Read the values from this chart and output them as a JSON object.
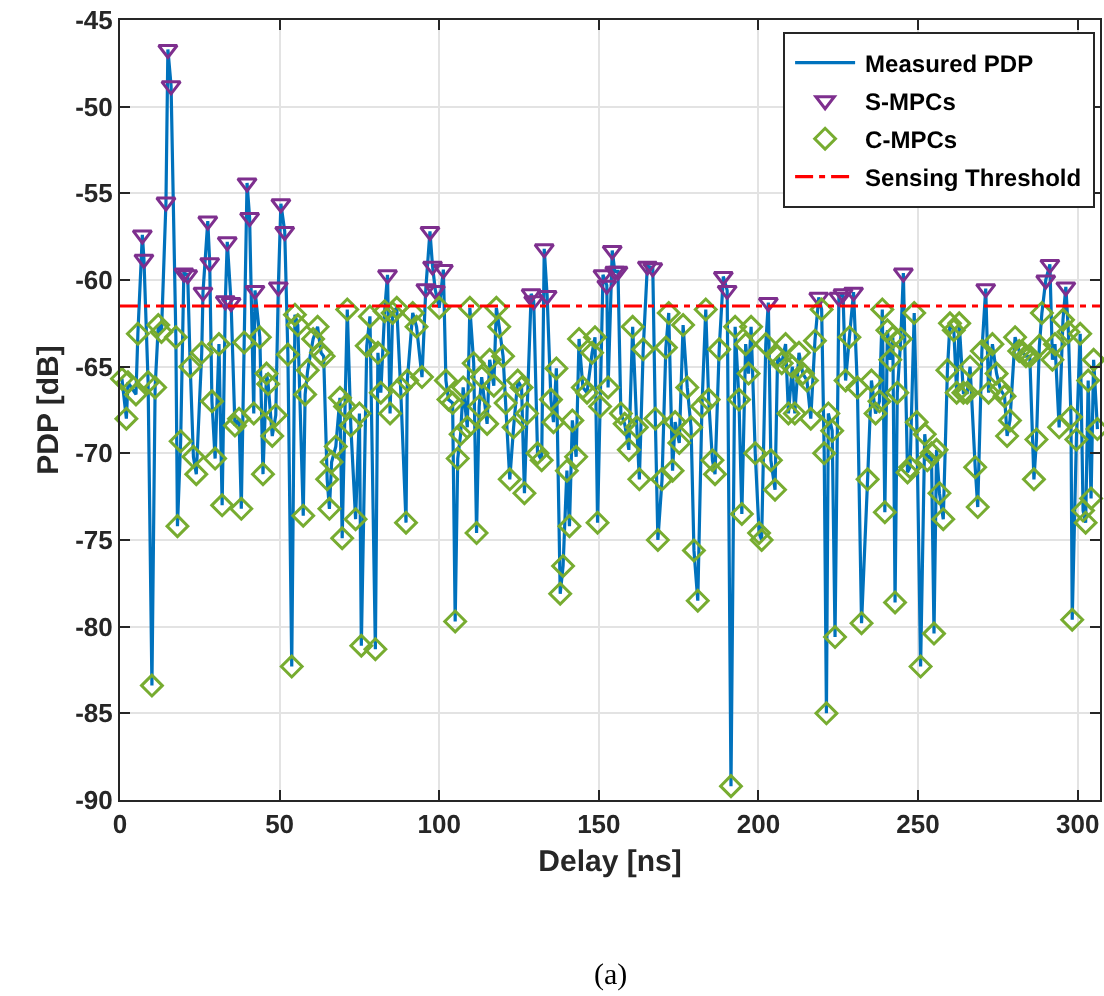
{
  "chart_data": {
    "type": "line",
    "xlabel": "Delay [ns]",
    "ylabel": "PDP [dB]",
    "xlim": [
      0,
      307
    ],
    "ylim": [
      -90,
      -45
    ],
    "xticks": [
      0,
      50,
      100,
      150,
      200,
      250,
      300
    ],
    "yticks": [
      -90,
      -85,
      -80,
      -75,
      -70,
      -65,
      -60,
      -55,
      -50,
      -45
    ],
    "grid": true,
    "legend": "top right",
    "annotations": [
      "(a)"
    ],
    "ref_lines": [
      {
        "axis": "y",
        "value": -61.5,
        "label": "Sensing Threshold",
        "color": "#ff0000",
        "line_style": "dashdot"
      }
    ],
    "series": [
      {
        "name": "Measured PDP",
        "color": "#0072bd",
        "marker": "none",
        "line_style": "solid",
        "x": [
          0.6,
          2,
          2.5,
          5,
          5.6,
          7,
          7.5,
          8.8,
          10,
          11,
          12,
          13,
          14.4,
          15,
          16,
          17.5,
          18,
          19,
          20,
          21.2,
          22,
          23,
          23.9,
          25.6,
          26,
          27.5,
          28.1,
          28.8,
          29.8,
          31,
          32,
          33,
          33.6,
          34.8,
          36,
          37.3,
          38,
          38.9,
          39.8,
          40.6,
          41.9,
          42.3,
          43.8,
          44.8,
          45.9,
          46.4,
          47.7,
          48.8,
          49.6,
          50.4,
          51.6,
          52.6,
          53.8,
          54.8,
          55.7,
          57.4,
          58,
          58.8,
          60.5,
          61.9,
          63,
          63.8,
          64.9,
          65.6,
          66.3,
          67.6,
          68.9,
          69.6,
          70.5,
          71.2,
          72.3,
          73.8,
          75,
          75.6,
          77.3,
          78.3,
          80,
          80.8,
          81.7,
          82.9,
          83.8,
          84.6,
          85.4,
          86.7,
          87.9,
          89.6,
          90,
          91.7,
          92.9,
          94.6,
          95.8,
          97.1,
          97.9,
          98.8,
          100,
          101.3,
          102.1,
          102.9,
          104.2,
          105,
          105.8,
          106.7,
          107.5,
          108.8,
          109.6,
          110.8,
          111.7,
          112.5,
          113.3,
          115,
          115.8,
          117.1,
          117.9,
          118.8,
          120,
          120.8,
          122.1,
          123.3,
          124.6,
          125.8,
          126.7,
          127.5,
          128.8,
          129.6,
          130.8,
          132.1,
          132.9,
          133.8,
          135,
          135.8,
          136.7,
          137.9,
          138.8,
          140,
          140.8,
          141.7,
          142.9,
          143.8,
          145,
          146.3,
          147.9,
          148.8,
          149.6,
          150.4,
          151.3,
          152.5,
          152.9,
          154.2,
          155,
          156,
          156.9,
          158.1,
          159.4,
          160.6,
          161.9,
          162.7,
          163.9,
          165.2,
          166.9,
          167.7,
          168.5,
          169.8,
          171,
          171.9,
          173.1,
          173.9,
          175.2,
          176.4,
          177.7,
          178.9,
          179.8,
          181,
          182.3,
          183.5,
          184.4,
          185.6,
          186.4,
          187.7,
          189,
          190.2,
          191.4,
          192.7,
          193.9,
          194.8,
          196,
          196.9,
          197.7,
          199,
          200.2,
          201,
          202.3,
          203.1,
          203.9,
          205.2,
          206,
          207.3,
          208.5,
          209.4,
          210.6,
          211.4,
          212.7,
          213.9,
          215.2,
          216.4,
          217.7,
          218.9,
          219.8,
          220.6,
          221.3,
          221.9,
          223.1,
          224,
          225.2,
          226.5,
          227.3,
          228.5,
          229.8,
          231,
          232.3,
          234.2,
          235.4,
          236.7,
          237.9,
          238.8,
          239.6,
          240.4,
          241.3,
          242.1,
          242.8,
          243.5,
          244.6,
          245.4,
          246.7,
          247.5,
          248.8,
          249.6,
          250.8,
          252.1,
          252.9,
          254.2,
          255,
          255.8,
          256.7,
          257.9,
          259.2,
          260,
          261.2,
          262.1,
          262.9,
          264.2,
          265.4,
          266.3,
          267.9,
          268.7,
          270,
          271.2,
          272.1,
          273.3,
          274.6,
          275.8,
          277.1,
          277.9,
          278.8,
          280.4,
          281.7,
          282.9,
          283.8,
          285,
          286.3,
          287.1,
          288,
          288.8,
          290,
          291.3,
          292.1,
          292.9,
          294.2,
          295.4,
          296.3,
          297.1,
          297.9,
          298.3,
          299.6,
          300.8,
          301.7,
          302.5,
          303.3,
          304.2,
          305,
          306.2
        ],
        "values": [
          -65.7,
          -68,
          -65.9,
          -66.6,
          -63.1,
          -57.4,
          -58.8,
          -65.9,
          -83.4,
          -66.2,
          -62.6,
          -63,
          -55.5,
          -46.7,
          -48.8,
          -63.3,
          -74.2,
          -69.3,
          -59.6,
          -59.7,
          -65,
          -70.2,
          -71.2,
          -64.2,
          -60.7,
          -56.6,
          -59,
          -67,
          -70.3,
          -63.7,
          -73,
          -61.2,
          -57.8,
          -61.3,
          -68.4,
          -68,
          -73.2,
          -63.6,
          -54.4,
          -56.4,
          -67.7,
          -60.6,
          -63.3,
          -71.2,
          -65.4,
          -66,
          -69,
          -67.8,
          -60.4,
          -55.6,
          -57.2,
          -64.3,
          -82.3,
          -62,
          -62.6,
          -73.6,
          -66.6,
          -65.2,
          -63.4,
          -62.7,
          -64.2,
          -64.4,
          -71.5,
          -73.2,
          -70.5,
          -69.6,
          -66.8,
          -74.9,
          -67.3,
          -61.7,
          -68.4,
          -73.8,
          -67.7,
          -81.1,
          -63.8,
          -62.1,
          -81.3,
          -64.2,
          -66.5,
          -61.8,
          -59.7,
          -67.7,
          -61.9,
          -61.6,
          -66.2,
          -74,
          -65.8,
          -61.9,
          -62.7,
          -65.6,
          -60.5,
          -57.2,
          -59.2,
          -60.6,
          -61.6,
          -59.4,
          -65.8,
          -66.9,
          -67.1,
          -79.7,
          -70.3,
          -68.9,
          -66.2,
          -68.5,
          -61.6,
          -64.8,
          -74.6,
          -67.3,
          -65.6,
          -68.3,
          -64.6,
          -66.1,
          -61.6,
          -62.7,
          -64.4,
          -67.1,
          -71.5,
          -68.5,
          -65.8,
          -66.2,
          -72.3,
          -67.7,
          -60.8,
          -61.2,
          -70,
          -70.4,
          -58.2,
          -60.9,
          -66.9,
          -68.2,
          -65.1,
          -78.1,
          -76.5,
          -71,
          -74.2,
          -68.1,
          -70.2,
          -63.4,
          -66.2,
          -66.5,
          -64.2,
          -63.3,
          -74,
          -67.3,
          -59.7,
          -60.3,
          -66.2,
          -58.3,
          -59.5,
          -59.5,
          -67.7,
          -68.3,
          -69.8,
          -62.7,
          -68.5,
          -71.5,
          -64,
          -59.2,
          -59.3,
          -68,
          -75,
          -71.5,
          -63.9,
          -61.9,
          -71,
          -68.2,
          -69.4,
          -62.6,
          -66.2,
          -68.5,
          -75.6,
          -78.5,
          -67.3,
          -61.7,
          -66.9,
          -70.4,
          -71.2,
          -64,
          -59.8,
          -60.6,
          -89.2,
          -62.7,
          -66.9,
          -73.5,
          -63.7,
          -65.4,
          -62.7,
          -70,
          -74.6,
          -75,
          -63.7,
          -61.3,
          -70.4,
          -72.1,
          -64.4,
          -64.8,
          -63.7,
          -67.7,
          -65,
          -67.7,
          -64.2,
          -65.4,
          -65.8,
          -68,
          -63.5,
          -61,
          -61.7,
          -70,
          -85,
          -67.7,
          -68.7,
          -80.6,
          -61,
          -60.8,
          -65.8,
          -63.3,
          -60.7,
          -66.2,
          -79.8,
          -71.5,
          -65.8,
          -67.7,
          -67,
          -61.7,
          -73.4,
          -62.9,
          -64.6,
          -63.3,
          -78.6,
          -66.5,
          -63.4,
          -59.6,
          -71.1,
          -70.8,
          -61.9,
          -68.2,
          -82.3,
          -68.9,
          -70.4,
          -70,
          -80.4,
          -69.8,
          -72.3,
          -73.8,
          -65.2,
          -62.5,
          -62.9,
          -66.5,
          -62.5,
          -66.5,
          -66.5,
          -65,
          -70.8,
          -73.1,
          -64.1,
          -60.5,
          -66.5,
          -63.7,
          -65.4,
          -66.3,
          -66.7,
          -69,
          -68.1,
          -63.3,
          -64.1,
          -64.2,
          -64.4,
          -64.4,
          -71.5,
          -69.2,
          -63.8,
          -61.9,
          -60,
          -59.1,
          -64.6,
          -63.7,
          -68.5,
          -62.3,
          -60.4,
          -63,
          -67.9,
          -79.6,
          -69.2,
          -63.1,
          -73.3,
          -74,
          -65.8,
          -72.6,
          -64.6,
          -68.6
        ]
      },
      {
        "name": "S-MPCs",
        "type": "scatter",
        "color": "#7e2f8e",
        "marker": "triangle",
        "x": [
          7,
          7.5,
          14.4,
          15,
          16,
          20,
          21.2,
          26,
          27.5,
          28.1,
          33,
          33.6,
          34.8,
          39.8,
          40.6,
          42.3,
          49.6,
          50.4,
          51.6,
          83.8,
          95.8,
          97.1,
          97.9,
          98.8,
          101.3,
          128.8,
          129.6,
          132.9,
          133.8,
          151.3,
          152.5,
          154.2,
          155,
          156,
          165.2,
          166.9,
          189,
          190.2,
          203.1,
          218.9,
          225.2,
          226.5,
          229.8,
          245.4,
          271.2,
          290,
          291.3,
          296.3
        ],
        "values": [
          -57.4,
          -58.8,
          -55.5,
          -46.7,
          -48.8,
          -59.6,
          -59.7,
          -60.7,
          -56.6,
          -59,
          -61.2,
          -57.8,
          -61.3,
          -54.4,
          -56.4,
          -60.6,
          -60.4,
          -55.6,
          -57.2,
          -59.7,
          -60.5,
          -57.2,
          -59.2,
          -60.6,
          -59.4,
          -60.8,
          -61.2,
          -58.2,
          -60.9,
          -59.7,
          -60.3,
          -58.3,
          -59.5,
          -59.5,
          -59.2,
          -59.3,
          -59.8,
          -60.6,
          -61.3,
          -61,
          -61,
          -60.8,
          -60.7,
          -59.6,
          -60.5,
          -60,
          -59.1,
          -60.4
        ]
      },
      {
        "name": "C-MPCs",
        "type": "scatter",
        "color": "#77ac30",
        "marker": "diamond",
        "x": [
          0.6,
          2,
          2.5,
          5,
          5.6,
          8.8,
          10,
          11,
          12,
          13,
          17.5,
          18,
          19,
          22,
          23,
          23.9,
          25.6,
          28.8,
          29.8,
          31,
          32,
          36,
          37.3,
          38,
          38.9,
          41.9,
          43.8,
          44.8,
          45.9,
          46.4,
          47.7,
          48.8,
          52.6,
          53.8,
          54.8,
          55.7,
          57.4,
          58,
          58.8,
          60.5,
          61.9,
          63,
          63.8,
          64.9,
          65.6,
          66.3,
          67.6,
          68.9,
          69.6,
          70.5,
          71.2,
          72.3,
          73.8,
          75,
          75.6,
          77.3,
          78.3,
          80,
          80.8,
          81.7,
          82.9,
          84.6,
          85.4,
          86.7,
          87.9,
          89.6,
          90,
          91.7,
          92.9,
          94.6,
          100,
          102.1,
          102.9,
          104.2,
          105,
          105.8,
          106.7,
          107.5,
          108.8,
          109.6,
          110.8,
          111.7,
          112.5,
          113.3,
          115,
          115.8,
          117.1,
          117.9,
          118.8,
          120,
          120.8,
          122.1,
          123.3,
          124.6,
          125.8,
          126.7,
          127.5,
          130.8,
          132.1,
          135,
          135.8,
          136.7,
          137.9,
          138.8,
          140,
          140.8,
          141.7,
          142.9,
          143.8,
          145,
          146.3,
          147.9,
          148.8,
          149.6,
          150.4,
          152.9,
          156.9,
          158.1,
          159.4,
          160.6,
          161.9,
          162.7,
          163.9,
          167.7,
          168.5,
          169.8,
          171,
          171.9,
          173.1,
          173.9,
          175.2,
          176.4,
          177.7,
          178.9,
          179.8,
          181,
          182.3,
          183.5,
          184.4,
          185.6,
          186.4,
          187.7,
          191.4,
          192.7,
          193.9,
          194.8,
          196,
          196.9,
          197.7,
          199,
          200.2,
          201,
          202.3,
          203.9,
          205.2,
          206,
          207.3,
          208.5,
          209.4,
          210.6,
          211.4,
          212.7,
          213.9,
          215.2,
          216.4,
          217.7,
          219.8,
          220.6,
          221.3,
          221.9,
          223.1,
          224,
          227.3,
          228.5,
          231,
          232.3,
          234.2,
          235.4,
          236.7,
          237.9,
          238.8,
          239.6,
          240.4,
          241.3,
          242.1,
          242.8,
          243.5,
          244.6,
          246.7,
          247.5,
          248.8,
          249.6,
          250.8,
          252.1,
          252.9,
          254.2,
          255,
          255.8,
          256.7,
          257.9,
          259.2,
          260,
          261.2,
          262.1,
          262.9,
          264.2,
          265.4,
          266.3,
          267.9,
          268.7,
          270,
          272.1,
          273.3,
          274.6,
          275.8,
          277.1,
          277.9,
          278.8,
          280.4,
          281.7,
          282.9,
          283.8,
          285,
          286.3,
          287.1,
          288,
          288.8,
          292.1,
          292.9,
          294.2,
          295.4,
          297.1,
          297.9,
          298.3,
          299.6,
          300.8,
          301.7,
          302.5,
          303.3,
          304.2,
          305,
          306.2
        ],
        "values": [
          -65.7,
          -68,
          -65.9,
          -66.6,
          -63.1,
          -65.9,
          -83.4,
          -66.2,
          -62.6,
          -63,
          -63.3,
          -74.2,
          -69.3,
          -65,
          -70.2,
          -71.2,
          -64.2,
          -67,
          -70.3,
          -63.7,
          -73,
          -68.4,
          -68,
          -73.2,
          -63.6,
          -67.7,
          -63.3,
          -71.2,
          -65.4,
          -66,
          -69,
          -67.8,
          -64.3,
          -82.3,
          -62,
          -62.6,
          -73.6,
          -66.6,
          -65.2,
          -63.4,
          -62.7,
          -64.2,
          -64.4,
          -71.5,
          -73.2,
          -70.5,
          -69.6,
          -66.8,
          -74.9,
          -67.3,
          -61.7,
          -68.4,
          -73.8,
          -67.7,
          -81.1,
          -63.8,
          -62.1,
          -81.3,
          -64.2,
          -66.5,
          -61.8,
          -67.7,
          -61.9,
          -61.6,
          -66.2,
          -74,
          -65.8,
          -61.9,
          -62.7,
          -65.6,
          -61.6,
          -65.8,
          -66.9,
          -67.1,
          -79.7,
          -70.3,
          -68.9,
          -66.2,
          -68.5,
          -61.6,
          -64.8,
          -74.6,
          -67.3,
          -65.6,
          -68.3,
          -64.6,
          -66.1,
          -61.6,
          -62.7,
          -64.4,
          -67.1,
          -71.5,
          -68.5,
          -65.8,
          -66.2,
          -72.3,
          -67.7,
          -70,
          -70.4,
          -66.9,
          -68.2,
          -65.1,
          -78.1,
          -76.5,
          -71,
          -74.2,
          -68.1,
          -70.2,
          -63.4,
          -66.2,
          -66.5,
          -64.2,
          -63.3,
          -74,
          -67.3,
          -66.2,
          -67.7,
          -68.3,
          -69.8,
          -62.7,
          -68.5,
          -71.5,
          -64,
          -68,
          -75,
          -71.5,
          -63.9,
          -61.9,
          -71,
          -68.2,
          -69.4,
          -62.6,
          -66.2,
          -68.5,
          -75.6,
          -78.5,
          -67.3,
          -61.7,
          -66.9,
          -70.4,
          -71.2,
          -64,
          -89.2,
          -62.7,
          -66.9,
          -73.5,
          -63.7,
          -65.4,
          -62.7,
          -70,
          -74.6,
          -75,
          -63.7,
          -70.4,
          -72.1,
          -64.4,
          -64.8,
          -63.7,
          -67.7,
          -65,
          -67.7,
          -64.2,
          -65.4,
          -65.8,
          -68,
          -63.5,
          -61.7,
          -70,
          -85,
          -67.7,
          -68.7,
          -80.6,
          -65.8,
          -63.3,
          -66.2,
          -79.8,
          -71.5,
          -65.8,
          -67.7,
          -67,
          -61.7,
          -73.4,
          -62.9,
          -64.6,
          -63.3,
          -78.6,
          -66.5,
          -63.4,
          -71.1,
          -70.8,
          -61.9,
          -68.2,
          -82.3,
          -68.9,
          -70.4,
          -70,
          -80.4,
          -69.8,
          -72.3,
          -73.8,
          -65.2,
          -62.5,
          -62.9,
          -66.5,
          -62.5,
          -66.5,
          -66.5,
          -65,
          -70.8,
          -73.1,
          -64.1,
          -66.5,
          -63.7,
          -65.4,
          -66.3,
          -66.7,
          -69,
          -68.1,
          -63.3,
          -64.1,
          -64.2,
          -64.4,
          -64.4,
          -71.5,
          -69.2,
          -63.8,
          -61.9,
          -64.6,
          -63.7,
          -68.5,
          -62.3,
          -63,
          -67.9,
          -79.6,
          -69.2,
          -63.1,
          -73.3,
          -74,
          -65.8,
          -72.6,
          -64.6,
          -68.6
        ]
      }
    ]
  }
}
